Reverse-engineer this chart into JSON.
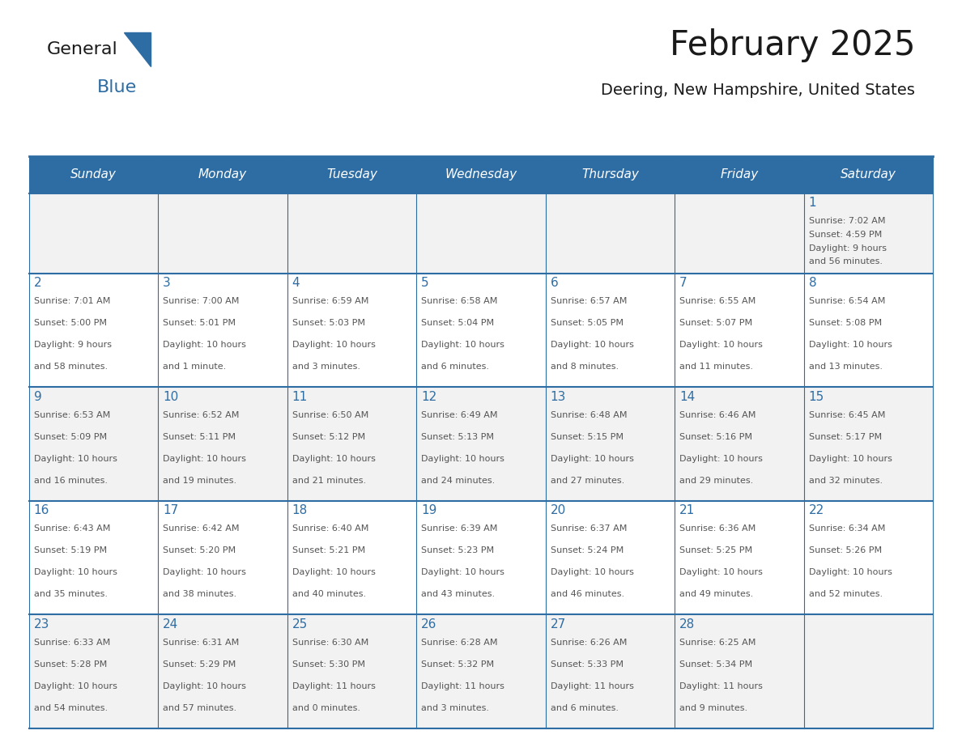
{
  "title": "February 2025",
  "subtitle": "Deering, New Hampshire, United States",
  "header_bg": "#2E6DA4",
  "header_text_color": "#FFFFFF",
  "cell_border_color": "#2E6DA4",
  "day_number_color": "#2E6DA4",
  "info_text_color": "#555555",
  "alt_row_bg": "#F2F2F2",
  "normal_row_bg": "#FFFFFF",
  "days_of_week": [
    "Sunday",
    "Monday",
    "Tuesday",
    "Wednesday",
    "Thursday",
    "Friday",
    "Saturday"
  ],
  "weeks": [
    [
      {
        "day": "",
        "info": ""
      },
      {
        "day": "",
        "info": ""
      },
      {
        "day": "",
        "info": ""
      },
      {
        "day": "",
        "info": ""
      },
      {
        "day": "",
        "info": ""
      },
      {
        "day": "",
        "info": ""
      },
      {
        "day": "1",
        "info": "Sunrise: 7:02 AM\nSunset: 4:59 PM\nDaylight: 9 hours\nand 56 minutes."
      }
    ],
    [
      {
        "day": "2",
        "info": "Sunrise: 7:01 AM\nSunset: 5:00 PM\nDaylight: 9 hours\nand 58 minutes."
      },
      {
        "day": "3",
        "info": "Sunrise: 7:00 AM\nSunset: 5:01 PM\nDaylight: 10 hours\nand 1 minute."
      },
      {
        "day": "4",
        "info": "Sunrise: 6:59 AM\nSunset: 5:03 PM\nDaylight: 10 hours\nand 3 minutes."
      },
      {
        "day": "5",
        "info": "Sunrise: 6:58 AM\nSunset: 5:04 PM\nDaylight: 10 hours\nand 6 minutes."
      },
      {
        "day": "6",
        "info": "Sunrise: 6:57 AM\nSunset: 5:05 PM\nDaylight: 10 hours\nand 8 minutes."
      },
      {
        "day": "7",
        "info": "Sunrise: 6:55 AM\nSunset: 5:07 PM\nDaylight: 10 hours\nand 11 minutes."
      },
      {
        "day": "8",
        "info": "Sunrise: 6:54 AM\nSunset: 5:08 PM\nDaylight: 10 hours\nand 13 minutes."
      }
    ],
    [
      {
        "day": "9",
        "info": "Sunrise: 6:53 AM\nSunset: 5:09 PM\nDaylight: 10 hours\nand 16 minutes."
      },
      {
        "day": "10",
        "info": "Sunrise: 6:52 AM\nSunset: 5:11 PM\nDaylight: 10 hours\nand 19 minutes."
      },
      {
        "day": "11",
        "info": "Sunrise: 6:50 AM\nSunset: 5:12 PM\nDaylight: 10 hours\nand 21 minutes."
      },
      {
        "day": "12",
        "info": "Sunrise: 6:49 AM\nSunset: 5:13 PM\nDaylight: 10 hours\nand 24 minutes."
      },
      {
        "day": "13",
        "info": "Sunrise: 6:48 AM\nSunset: 5:15 PM\nDaylight: 10 hours\nand 27 minutes."
      },
      {
        "day": "14",
        "info": "Sunrise: 6:46 AM\nSunset: 5:16 PM\nDaylight: 10 hours\nand 29 minutes."
      },
      {
        "day": "15",
        "info": "Sunrise: 6:45 AM\nSunset: 5:17 PM\nDaylight: 10 hours\nand 32 minutes."
      }
    ],
    [
      {
        "day": "16",
        "info": "Sunrise: 6:43 AM\nSunset: 5:19 PM\nDaylight: 10 hours\nand 35 minutes."
      },
      {
        "day": "17",
        "info": "Sunrise: 6:42 AM\nSunset: 5:20 PM\nDaylight: 10 hours\nand 38 minutes."
      },
      {
        "day": "18",
        "info": "Sunrise: 6:40 AM\nSunset: 5:21 PM\nDaylight: 10 hours\nand 40 minutes."
      },
      {
        "day": "19",
        "info": "Sunrise: 6:39 AM\nSunset: 5:23 PM\nDaylight: 10 hours\nand 43 minutes."
      },
      {
        "day": "20",
        "info": "Sunrise: 6:37 AM\nSunset: 5:24 PM\nDaylight: 10 hours\nand 46 minutes."
      },
      {
        "day": "21",
        "info": "Sunrise: 6:36 AM\nSunset: 5:25 PM\nDaylight: 10 hours\nand 49 minutes."
      },
      {
        "day": "22",
        "info": "Sunrise: 6:34 AM\nSunset: 5:26 PM\nDaylight: 10 hours\nand 52 minutes."
      }
    ],
    [
      {
        "day": "23",
        "info": "Sunrise: 6:33 AM\nSunset: 5:28 PM\nDaylight: 10 hours\nand 54 minutes."
      },
      {
        "day": "24",
        "info": "Sunrise: 6:31 AM\nSunset: 5:29 PM\nDaylight: 10 hours\nand 57 minutes."
      },
      {
        "day": "25",
        "info": "Sunrise: 6:30 AM\nSunset: 5:30 PM\nDaylight: 11 hours\nand 0 minutes."
      },
      {
        "day": "26",
        "info": "Sunrise: 6:28 AM\nSunset: 5:32 PM\nDaylight: 11 hours\nand 3 minutes."
      },
      {
        "day": "27",
        "info": "Sunrise: 6:26 AM\nSunset: 5:33 PM\nDaylight: 11 hours\nand 6 minutes."
      },
      {
        "day": "28",
        "info": "Sunrise: 6:25 AM\nSunset: 5:34 PM\nDaylight: 11 hours\nand 9 minutes."
      },
      {
        "day": "",
        "info": ""
      }
    ]
  ],
  "logo_text_general": "General",
  "logo_text_blue": "Blue",
  "logo_color_general": "#1a1a1a",
  "logo_color_blue": "#2E6DA4",
  "logo_triangle_color": "#2E6DA4"
}
